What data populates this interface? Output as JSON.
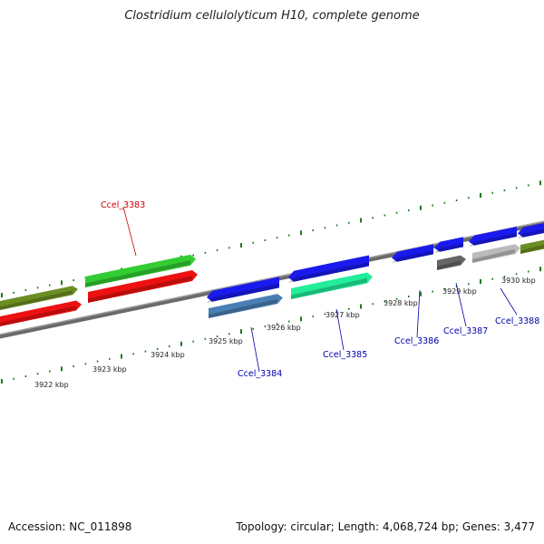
{
  "title": "Clostridium cellulolyticum H10, complete genome",
  "footer": {
    "accession": "Accession: NC_011898",
    "summary": "Topology: circular; Length: 4,068,724 bp; Genes: 3,477"
  },
  "colors": {
    "backbone": "#8a8a8a",
    "tick": "#1f7a1f",
    "label_plus": "#cc0000",
    "label_minus": "#0000aa"
  },
  "scale": {
    "tick_labels": [
      "3922 kbp",
      "3923 kbp",
      "3924 kbp",
      "3925 kbp",
      "3926 kbp",
      "3927 kbp",
      "3928 kbp",
      "3929 kbp",
      "3930 kbp"
    ]
  },
  "genes": [
    {
      "label": "Ccel_3383",
      "strand": "+",
      "color": "#33cc33",
      "row": "plus"
    },
    {
      "label": "Ccel_3384",
      "strand": "-",
      "color": "#4a7fb5",
      "row": "minus"
    },
    {
      "label": "Ccel_3385",
      "strand": "-",
      "color": "#22ee99",
      "row": "minus"
    },
    {
      "label": "Ccel_3386",
      "strand": "-",
      "color": "#1a1aee",
      "row": "minus"
    },
    {
      "label": "Ccel_3387",
      "strand": "-",
      "color": "#666666",
      "row": "minus"
    },
    {
      "label": "Ccel_3388",
      "strand": "-",
      "color": "#bbbbbb",
      "row": "minus"
    }
  ]
}
